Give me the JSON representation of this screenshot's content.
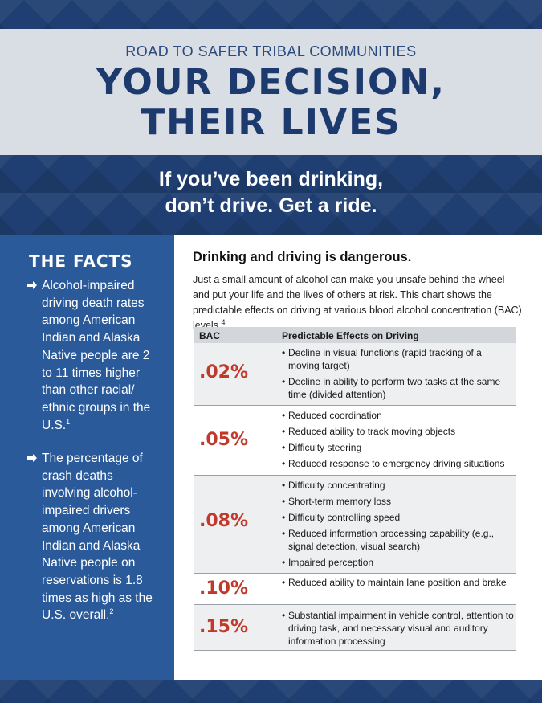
{
  "banner": {
    "kicker": "ROAD TO SAFER TRIBAL COMMUNITIES",
    "headline_line1": "YOUR DECISION,",
    "headline_line2": "THEIR LIVES"
  },
  "tagline": {
    "line1": "If you’ve been drinking,",
    "line2": "don’t drive. Get a ride."
  },
  "facts": {
    "title": "THE FACTS",
    "items": [
      {
        "text": "Alcohol-impaired driving death rates among American Indian and Alaska Native people are 2 to 11 times higher than other racial/ ethnic groups in the U.S.",
        "ref": "1"
      },
      {
        "text": "The percentage of crash deaths involving alcohol-impaired drivers among American Indian and Alaska Native people on reservations is 1.8 times as high as the U.S. overall.",
        "ref": "2"
      }
    ]
  },
  "main": {
    "heading": "Drinking and driving is dangerous.",
    "intro": "Just a small amount of alcohol can make you unsafe behind the wheel and put your life and the lives of others at risk. This chart shows the predictable effects on driving at various blood alcohol concentration (BAC) levels.",
    "intro_ref": "4"
  },
  "table": {
    "col_bac": "BAC",
    "col_effects": "Predictable Effects on Driving",
    "rows": [
      {
        "bac": ".02%",
        "effects": [
          "Decline in visual functions (rapid tracking of a moving target)",
          "Decline in ability to perform two tasks at the same time (divided attention)"
        ]
      },
      {
        "bac": ".05%",
        "effects": [
          "Reduced coordination",
          "Reduced ability to track moving objects",
          "Difficulty steering",
          "Reduced response to emergency driving situations"
        ]
      },
      {
        "bac": ".08%",
        "effects": [
          "Difficulty concentrating",
          "Short-term memory loss",
          "Difficulty controlling speed",
          "Reduced information processing capability (e.g., signal detection, visual search)",
          "Impaired perception"
        ]
      },
      {
        "bac": ".10%",
        "effects": [
          "Reduced ability to maintain lane position and brake"
        ]
      },
      {
        "bac": ".15%",
        "effects": [
          "Substantial impairment in vehicle control, attention to driving task, and necessary visual and auditory information processing"
        ]
      }
    ]
  },
  "colors": {
    "navy": "#1d3a6e",
    "sidebar_blue": "#2a5a9a",
    "bac_red": "#c0392b",
    "banner_gray": "#d9dde4"
  }
}
